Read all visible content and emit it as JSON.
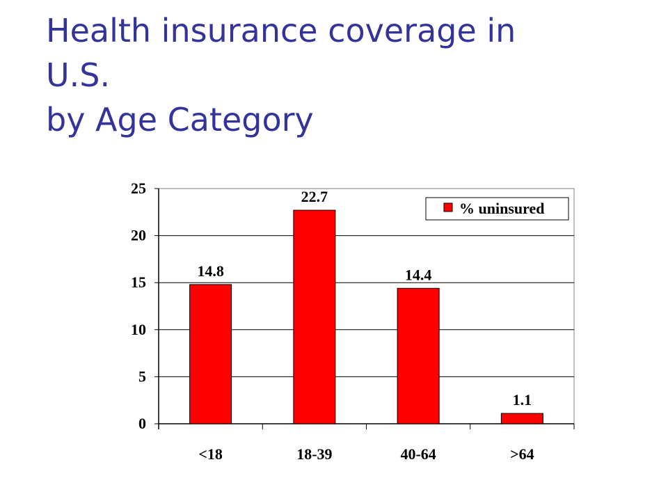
{
  "slide": {
    "title_lines": [
      "Health insurance coverage in",
      "U.S.",
      "by Age Category"
    ]
  },
  "chart_data": {
    "type": "bar",
    "categories": [
      "<18",
      "18-39",
      "40-64",
      ">64"
    ],
    "series": [
      {
        "name": "% uninsured",
        "values": [
          14.8,
          22.7,
          14.4,
          1.1
        ],
        "color": "#ff0000"
      }
    ],
    "data_labels": [
      "14.8",
      "22.7",
      "14.4",
      "1.1"
    ],
    "ylim": [
      0,
      25
    ],
    "yticks": [
      0,
      5,
      10,
      15,
      20,
      25
    ],
    "grid": true,
    "legend_position": "top-right"
  }
}
